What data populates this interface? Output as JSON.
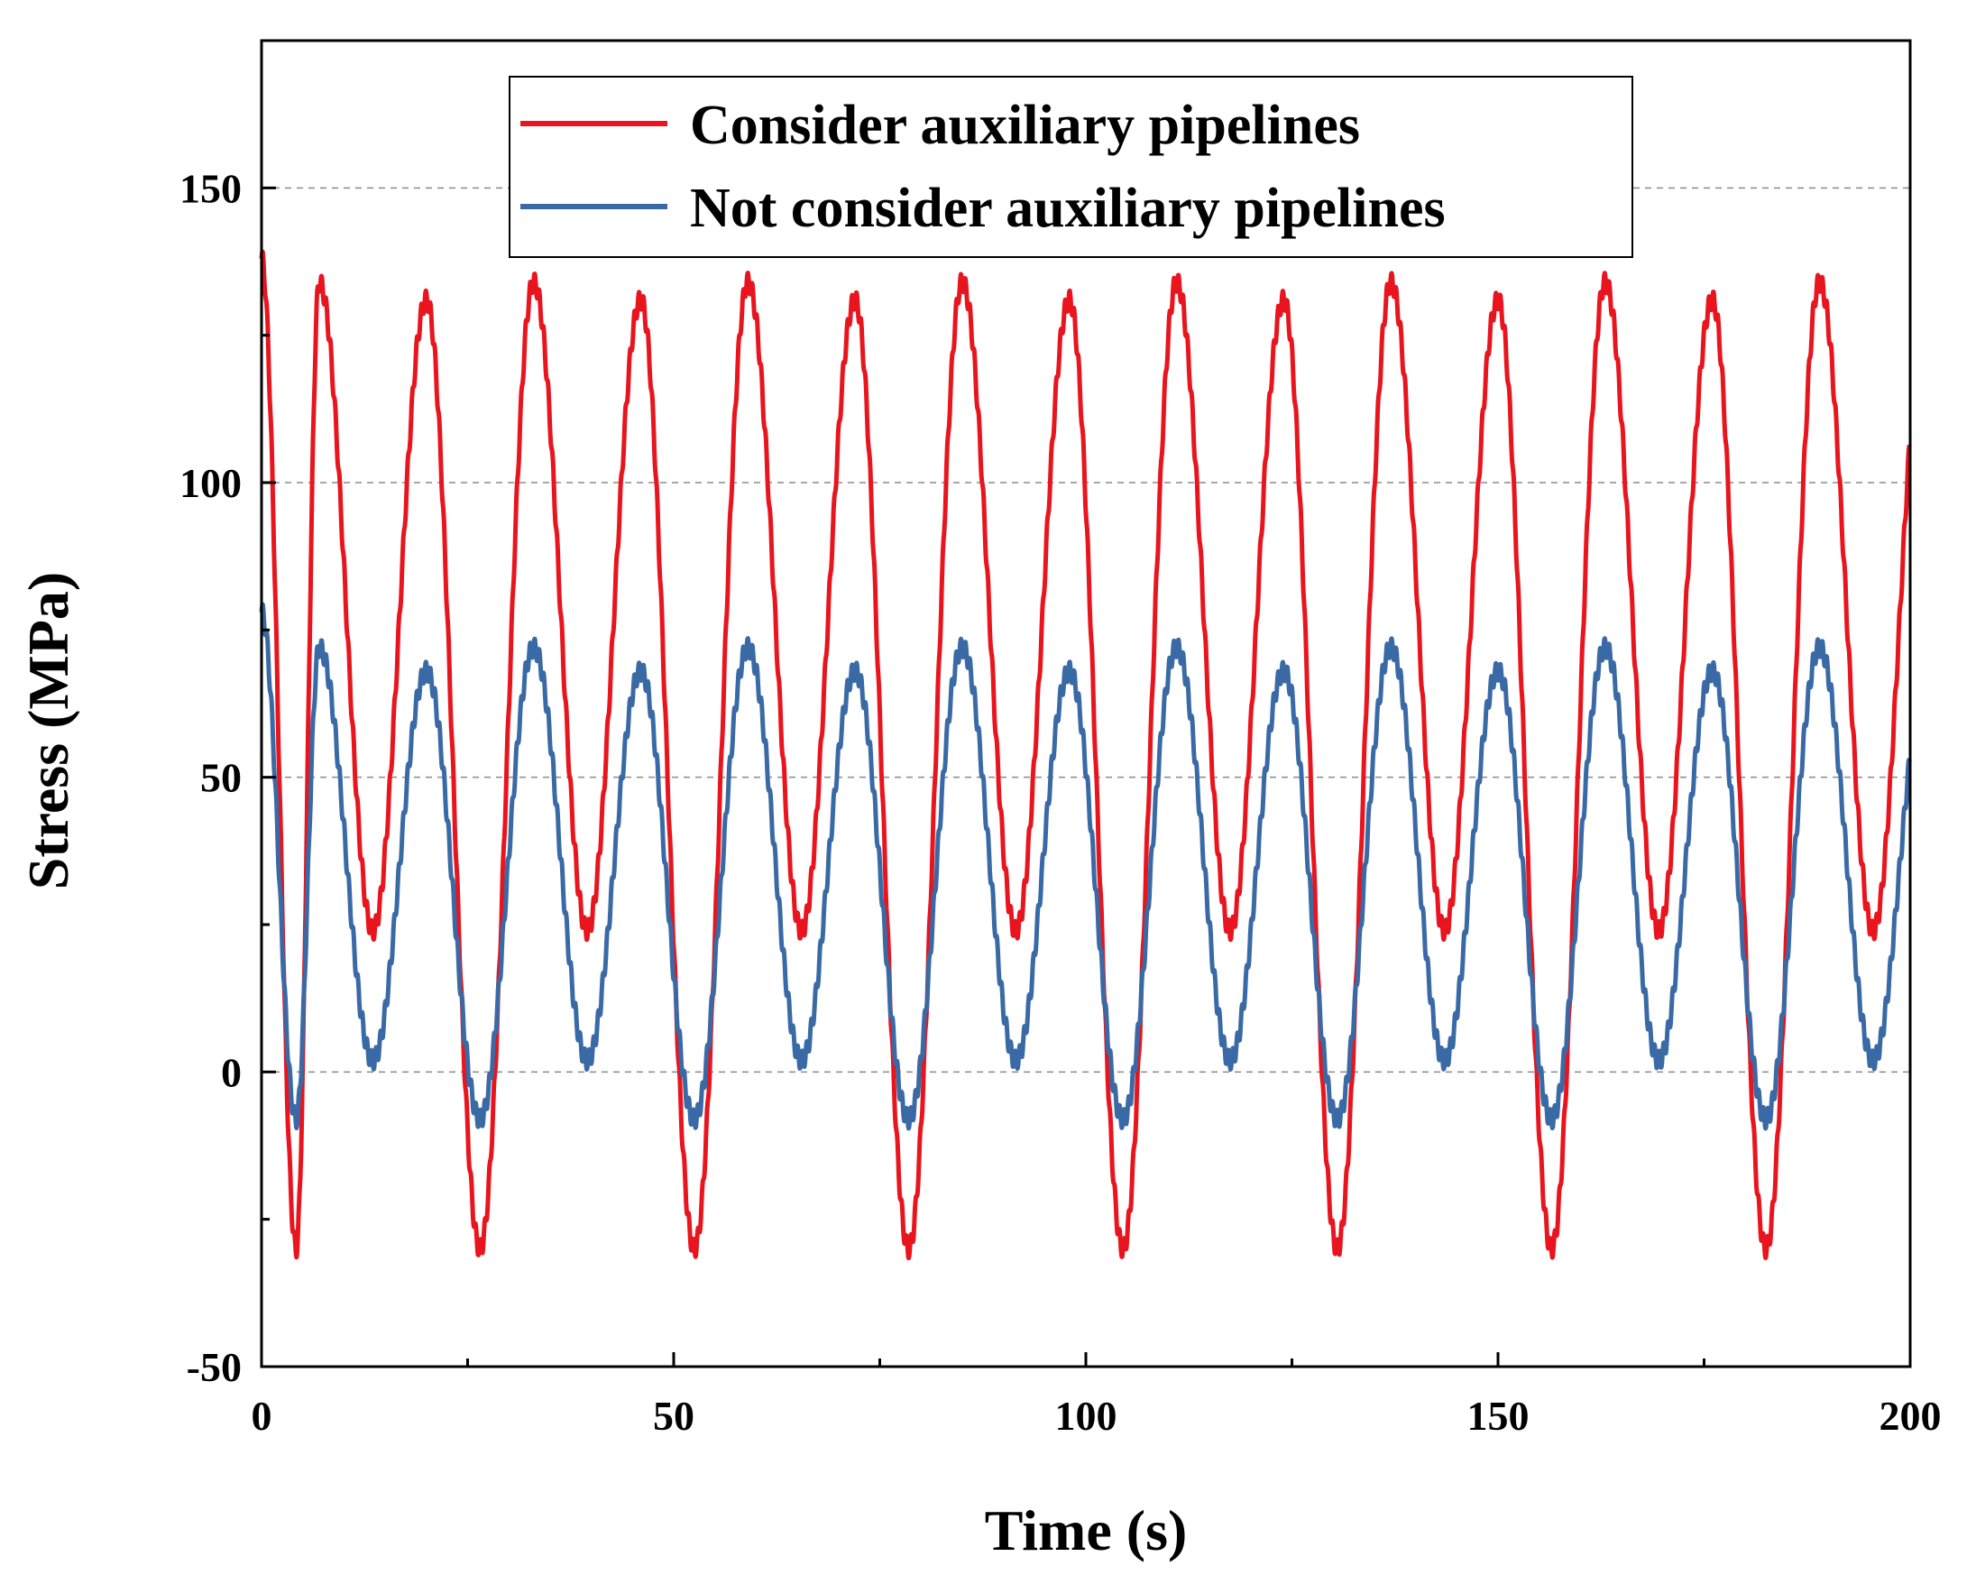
{
  "chart_data": {
    "type": "line",
    "title": "",
    "xlabel": "Time (s)",
    "ylabel": "Stress (MPa)",
    "xlim": [
      0,
      200
    ],
    "ylim": [
      -50,
      175
    ],
    "xticks": [
      0,
      50,
      100,
      150,
      200
    ],
    "xtick_labels": [
      "0",
      "50",
      "100",
      "150",
      "200"
    ],
    "yticks": [
      -50,
      0,
      50,
      100,
      150
    ],
    "ytick_labels": [
      "-50",
      "0",
      "50",
      "100",
      "150"
    ],
    "grid": "horizontal dashed at 0, 50, 100, 150",
    "legend_position": "top-center",
    "series": [
      {
        "name": "Consider auxiliary pipelines",
        "color": "#e8141e",
        "initial_value": 138,
        "dominant_period": 13,
        "min_value": -30,
        "max_value": 134,
        "secondary_min": 24,
        "secondary_max": 131,
        "description": "periodic oscillation, alternating peaks 134 / 131, troughs -30 / 24"
      },
      {
        "name": "Not consider auxiliary pipelines",
        "color": "#3a6aa5",
        "initial_value": 78,
        "dominant_period": 13,
        "min_value": -8,
        "max_value": 72,
        "secondary_min": 2,
        "secondary_max": 68,
        "description": "periodic oscillation, alternating peaks 72 / 68, troughs -8 / 2"
      }
    ]
  },
  "legend": {
    "items": [
      {
        "label": "Consider auxiliary pipelines",
        "color": "#e8141e"
      },
      {
        "label": "Not consider auxiliary pipelines",
        "color": "#3a6aa5"
      }
    ]
  }
}
